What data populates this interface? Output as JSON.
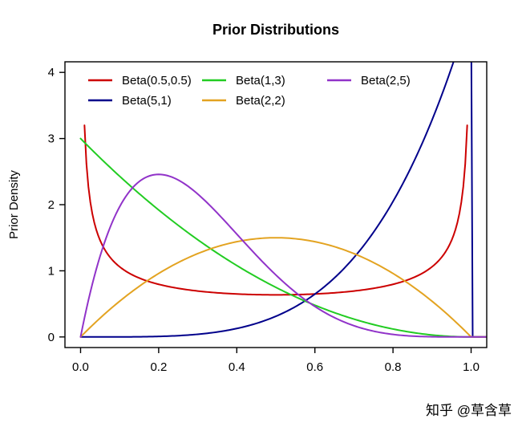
{
  "title": "Prior Distributions",
  "watermark": {
    "text": "知乎 @草含草",
    "color": "#D8D8D8"
  },
  "chart_data": {
    "type": "line",
    "title": "Prior Distributions",
    "xlabel": "",
    "ylabel": "Prior Density",
    "xlim": [
      -0.04,
      1.04
    ],
    "ylim": [
      -0.16,
      4.16
    ],
    "x_ticks": {
      "values": [
        0.0,
        0.2,
        0.4,
        0.6,
        0.8,
        1.0
      ],
      "labels": [
        "0.0",
        "0.2",
        "0.4",
        "0.6",
        "0.8",
        "1.0"
      ]
    },
    "y_ticks": {
      "values": [
        0,
        1,
        2,
        3,
        4
      ],
      "labels": [
        "0",
        "1",
        "2",
        "3",
        "4"
      ]
    },
    "grid": false,
    "legend_position": "top-left-inside",
    "line_width": 2,
    "series": [
      {
        "name": "beta-0.5-0.5",
        "label": "Beta(0.5,0.5)",
        "color": "#CC0000",
        "distribution": "beta_pdf",
        "a": 0.5,
        "b": 0.5,
        "norm": 0.3183098862,
        "x_start": 0.01,
        "x_end": 0.99,
        "extend_right_zero": false,
        "key_points": [
          [
            0.01,
            3.2
          ],
          [
            0.1,
            1.06
          ],
          [
            0.25,
            0.735
          ],
          [
            0.5,
            0.637
          ],
          [
            0.75,
            0.735
          ],
          [
            0.9,
            1.06
          ],
          [
            0.99,
            3.2
          ]
        ]
      },
      {
        "name": "beta-5-1",
        "label": "Beta(5,1)",
        "color": "#00008B",
        "distribution": "beta_pdf",
        "a": 5,
        "b": 1,
        "norm": 5,
        "x_start": 0,
        "x_end": 1,
        "extend_right_zero": true,
        "key_points": [
          [
            0,
            0
          ],
          [
            0.25,
            0.02
          ],
          [
            0.5,
            0.3125
          ],
          [
            0.75,
            1.582
          ],
          [
            0.9,
            3.281
          ],
          [
            1.0,
            5.0
          ]
        ]
      },
      {
        "name": "beta-1-3",
        "label": "Beta(1,3)",
        "color": "#22CC22",
        "distribution": "beta_pdf",
        "a": 1,
        "b": 3,
        "norm": 3,
        "x_start": 0,
        "x_end": 1,
        "extend_right_zero": true,
        "key_points": [
          [
            0,
            3.0
          ],
          [
            0.25,
            1.6875
          ],
          [
            0.5,
            0.75
          ],
          [
            0.75,
            0.1875
          ],
          [
            1.0,
            0
          ]
        ]
      },
      {
        "name": "beta-2-2",
        "label": "Beta(2,2)",
        "color": "#E3A321",
        "distribution": "beta_pdf",
        "a": 2,
        "b": 2,
        "norm": 6,
        "x_start": 0,
        "x_end": 1,
        "extend_right_zero": true,
        "key_points": [
          [
            0,
            0
          ],
          [
            0.25,
            1.125
          ],
          [
            0.5,
            1.5
          ],
          [
            0.75,
            1.125
          ],
          [
            1.0,
            0
          ]
        ]
      },
      {
        "name": "beta-2-5",
        "label": "Beta(2,5)",
        "color": "#9133C9",
        "distribution": "beta_pdf",
        "a": 2,
        "b": 5,
        "norm": 30,
        "x_start": 0,
        "x_end": 1,
        "extend_right_zero": true,
        "key_points": [
          [
            0,
            0
          ],
          [
            0.1,
            1.968
          ],
          [
            0.2,
            2.458
          ],
          [
            0.25,
            2.373
          ],
          [
            0.5,
            0.9375
          ],
          [
            0.75,
            0.088
          ],
          [
            1.0,
            0
          ]
        ]
      }
    ],
    "legend": {
      "rows": 2,
      "columns": 3,
      "items": [
        {
          "label": "Beta(0.5,0.5)",
          "color": "#CC0000",
          "row": 0,
          "col": 0
        },
        {
          "label": "Beta(5,1)",
          "color": "#00008B",
          "row": 1,
          "col": 0
        },
        {
          "label": "Beta(1,3)",
          "color": "#22CC22",
          "row": 0,
          "col": 1
        },
        {
          "label": "Beta(2,2)",
          "color": "#E3A321",
          "row": 1,
          "col": 1
        },
        {
          "label": "Beta(2,5)",
          "color": "#9133C9",
          "row": 0,
          "col": 2
        }
      ]
    }
  }
}
